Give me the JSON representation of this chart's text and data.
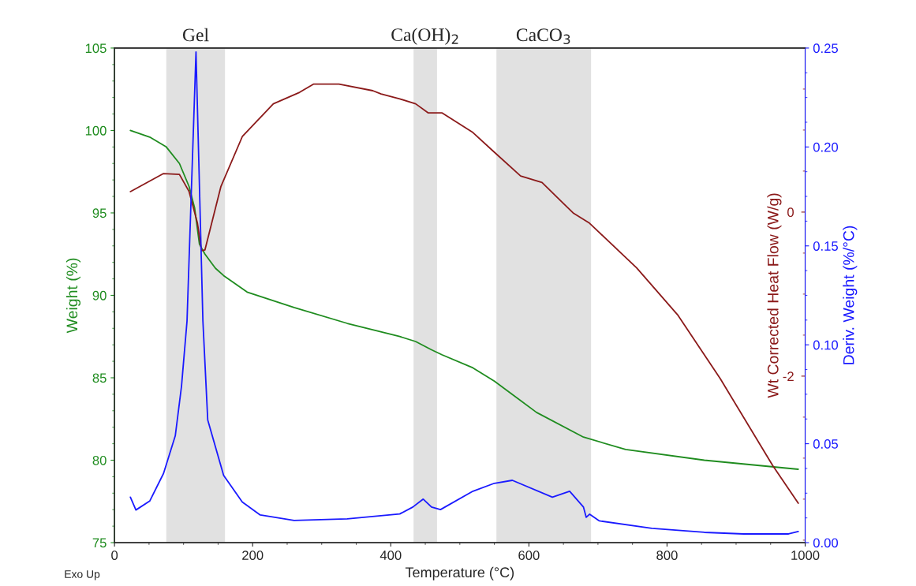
{
  "chart_data": {
    "type": "line",
    "xlabel": "Temperature (°C)",
    "ylabel": "Weight (%)",
    "y2label": "Wt Corrected Heat Flow (W/g)",
    "y3label": "Deriv. Weight (%/°C)",
    "xlim": [
      0,
      1000
    ],
    "xticks": [
      0,
      200,
      400,
      600,
      800,
      1000
    ],
    "ylim": [
      75,
      105
    ],
    "yticks": [
      75,
      80,
      85,
      90,
      95,
      100,
      105
    ],
    "y2lim": [
      -4.03,
      2.0
    ],
    "y2ticks": [
      -2,
      0
    ],
    "y3lim": [
      0,
      0.25
    ],
    "y3ticks": [
      {
        "value": 0,
        "label": "0.00"
      },
      {
        "value": 0.05,
        "label": "0.05"
      },
      {
        "value": 0.1,
        "label": "0.10"
      },
      {
        "value": 0.15,
        "label": "0.15"
      },
      {
        "value": 0.2,
        "label": "0.20"
      },
      {
        "value": 0.25,
        "label": "0.25"
      }
    ],
    "grid": false,
    "legend": false,
    "line_style": "solid",
    "marker": "none",
    "bands": [
      {
        "axis": "x",
        "from": 75,
        "to": 160,
        "label": "Gel",
        "color": "#e1e1e1"
      },
      {
        "axis": "x",
        "from": 433,
        "to": 467,
        "label": "Ca(OH)$_{2}$",
        "color": "#e1e1e1"
      },
      {
        "axis": "x",
        "from": 553,
        "to": 690,
        "label": "CaCO$_{3}$",
        "color": "#e1e1e1"
      }
    ],
    "annotations": [
      "Exo Up"
    ],
    "series": [
      {
        "axis": "y",
        "color": "#1f8c1f",
        "x": [
          23,
          51,
          75,
          94,
          108,
          116,
          123,
          131,
          146,
          158,
          192,
          260,
          337,
          413,
          436,
          459,
          474,
          519,
          550,
          611,
          679,
          740,
          854,
          990
        ],
        "values": [
          100.0,
          99.6,
          99.0,
          98.0,
          96.6,
          95.3,
          93.1,
          92.5,
          91.65,
          91.2,
          90.2,
          89.26,
          88.3,
          87.5,
          87.2,
          86.7,
          86.4,
          85.6,
          84.8,
          82.9,
          81.4,
          80.65,
          80.0,
          79.45
        ]
      },
      {
        "axis": "y2",
        "color": "#8b1a1a",
        "x": [
          23,
          71,
          94,
          108,
          120,
          126,
          131,
          154,
          185,
          230,
          268,
          288,
          325,
          374,
          386,
          413,
          436,
          454,
          474,
          519,
          550,
          588,
          619,
          664,
          687,
          756,
          816,
          877,
          953,
          990
        ],
        "values": [
          0.25,
          0.47,
          0.46,
          0.25,
          -0.13,
          -0.47,
          -0.46,
          0.31,
          0.92,
          1.32,
          1.46,
          1.56,
          1.56,
          1.48,
          1.44,
          1.38,
          1.32,
          1.21,
          1.21,
          0.97,
          0.73,
          0.44,
          0.36,
          -0.01,
          -0.13,
          -0.68,
          -1.26,
          -2.03,
          -3.09,
          -3.55
        ]
      },
      {
        "axis": "y3",
        "color": "#1a1aff",
        "x": [
          23,
          31,
          51,
          71,
          88,
          97,
          105,
          118,
          128,
          135,
          158,
          185,
          211,
          260,
          337,
          413,
          432,
          447,
          459,
          472,
          519,
          550,
          576,
          634,
          659,
          679,
          683,
          688,
          702,
          778,
          854,
          911,
          976,
          990
        ],
        "values": [
          0.023,
          0.0165,
          0.021,
          0.035,
          0.054,
          0.079,
          0.112,
          0.248,
          0.112,
          0.062,
          0.034,
          0.0205,
          0.014,
          0.0112,
          0.012,
          0.0145,
          0.018,
          0.022,
          0.018,
          0.0167,
          0.026,
          0.03,
          0.0315,
          0.023,
          0.026,
          0.018,
          0.0128,
          0.0144,
          0.011,
          0.0072,
          0.0052,
          0.0044,
          0.0044,
          0.0056
        ]
      }
    ]
  }
}
